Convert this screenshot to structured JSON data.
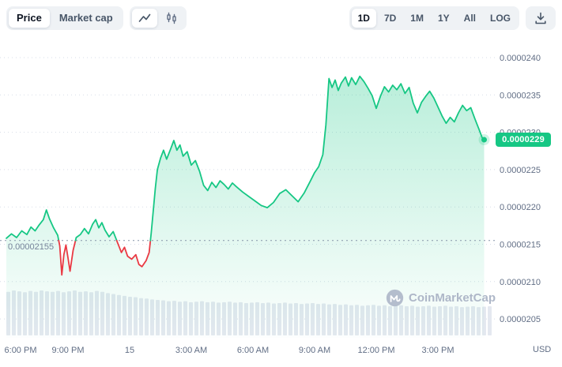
{
  "toolbar": {
    "metric_toggle": {
      "options": [
        "Price",
        "Market cap"
      ],
      "selected": "Price"
    },
    "chart_type": {
      "options": [
        "line",
        "candlestick"
      ],
      "selected": "line"
    },
    "ranges": {
      "options": [
        "1D",
        "7D",
        "1M",
        "1Y",
        "All",
        "LOG"
      ],
      "selected": "1D"
    }
  },
  "watermark": {
    "logo": "coinmarketcap-logo",
    "text": "CoinMarketCap"
  },
  "chart_data": {
    "type": "area",
    "title": "Cryptocurrency price chart, 1D range",
    "unit_note": "price values stored as value_x1e7; e.g. 229 means 0.0000229 USD",
    "x_axis": {
      "ticks": [
        {
          "label": "6:00 PM",
          "t": 0
        },
        {
          "label": "9:00 PM",
          "t": 3
        },
        {
          "label": "15",
          "t": 6
        },
        {
          "label": "3:00 AM",
          "t": 9
        },
        {
          "label": "6:00 AM",
          "t": 12
        },
        {
          "label": "9:00 AM",
          "t": 15
        },
        {
          "label": "12:00 PM",
          "t": 18
        },
        {
          "label": "3:00 PM",
          "t": 21
        }
      ]
    },
    "y_axis": {
      "ticks": [
        "0.0000240",
        "0.0000235",
        "0.0000230",
        "0.0000225",
        "0.0000220",
        "0.0000215",
        "0.0000210",
        "0.0000205"
      ],
      "unit": "USD"
    },
    "price": {
      "color_up": "#16c784",
      "color_down": "#ea3943",
      "prev_close_label": "0.00002155",
      "prev_close_x1e7": 215.5,
      "current_label": "0.0000229",
      "current_x1e7": 229.0,
      "points": [
        [
          0,
          215.8
        ],
        [
          0.25,
          216.4
        ],
        [
          0.5,
          215.9
        ],
        [
          0.75,
          216.8
        ],
        [
          1,
          216.3
        ],
        [
          1.2,
          217.3
        ],
        [
          1.4,
          216.8
        ],
        [
          1.6,
          217.6
        ],
        [
          1.8,
          218.3
        ],
        [
          1.95,
          219.6
        ],
        [
          2.1,
          218.4
        ],
        [
          2.3,
          217.2
        ],
        [
          2.5,
          216.2
        ],
        [
          2.6,
          214.8
        ],
        [
          2.7,
          210.9
        ],
        [
          2.8,
          213.6
        ],
        [
          2.9,
          214.9
        ],
        [
          3,
          213.2
        ],
        [
          3.1,
          211.4
        ],
        [
          3.25,
          214.2
        ],
        [
          3.4,
          215.9
        ],
        [
          3.6,
          216.3
        ],
        [
          3.8,
          217.1
        ],
        [
          4,
          216.4
        ],
        [
          4.2,
          217.7
        ],
        [
          4.35,
          218.3
        ],
        [
          4.5,
          217.2
        ],
        [
          4.65,
          217.9
        ],
        [
          4.8,
          216.9
        ],
        [
          5,
          216
        ],
        [
          5.2,
          216.7
        ],
        [
          5.4,
          215.3
        ],
        [
          5.6,
          213.9
        ],
        [
          5.75,
          214.6
        ],
        [
          5.9,
          213.4
        ],
        [
          6.1,
          213
        ],
        [
          6.3,
          213.6
        ],
        [
          6.45,
          212.3
        ],
        [
          6.6,
          212
        ],
        [
          6.8,
          212.8
        ],
        [
          6.95,
          213.9
        ],
        [
          7.05,
          216.5
        ],
        [
          7.15,
          219.5
        ],
        [
          7.25,
          222.5
        ],
        [
          7.35,
          225
        ],
        [
          7.5,
          226.5
        ],
        [
          7.65,
          227.6
        ],
        [
          7.8,
          226.4
        ],
        [
          8,
          227.8
        ],
        [
          8.15,
          228.9
        ],
        [
          8.3,
          227.6
        ],
        [
          8.45,
          228.3
        ],
        [
          8.6,
          226.8
        ],
        [
          8.8,
          227.4
        ],
        [
          9,
          225.6
        ],
        [
          9.2,
          226.2
        ],
        [
          9.4,
          224.8
        ],
        [
          9.6,
          222.9
        ],
        [
          9.8,
          222.2
        ],
        [
          10,
          223.3
        ],
        [
          10.2,
          222.6
        ],
        [
          10.4,
          223.5
        ],
        [
          10.6,
          223
        ],
        [
          10.8,
          222.4
        ],
        [
          11,
          223.2
        ],
        [
          11.2,
          222.7
        ],
        [
          11.5,
          222
        ],
        [
          11.8,
          221.4
        ],
        [
          12.1,
          220.8
        ],
        [
          12.4,
          220.2
        ],
        [
          12.7,
          219.9
        ],
        [
          13,
          220.6
        ],
        [
          13.3,
          221.8
        ],
        [
          13.6,
          222.3
        ],
        [
          13.9,
          221.5
        ],
        [
          14.2,
          220.7
        ],
        [
          14.5,
          221.9
        ],
        [
          14.8,
          223.5
        ],
        [
          15,
          224.6
        ],
        [
          15.2,
          225.4
        ],
        [
          15.4,
          227
        ],
        [
          15.55,
          231
        ],
        [
          15.7,
          237.2
        ],
        [
          15.85,
          236
        ],
        [
          16,
          237
        ],
        [
          16.15,
          235.6
        ],
        [
          16.3,
          236.6
        ],
        [
          16.5,
          237.4
        ],
        [
          16.65,
          236.2
        ],
        [
          16.8,
          237.3
        ],
        [
          17,
          236.4
        ],
        [
          17.2,
          237.5
        ],
        [
          17.4,
          236.8
        ],
        [
          17.6,
          235.9
        ],
        [
          17.8,
          234.9
        ],
        [
          18,
          233.2
        ],
        [
          18.2,
          234.8
        ],
        [
          18.4,
          236.1
        ],
        [
          18.6,
          235.4
        ],
        [
          18.8,
          236.3
        ],
        [
          19,
          235.7
        ],
        [
          19.2,
          236.5
        ],
        [
          19.4,
          235.2
        ],
        [
          19.6,
          236
        ],
        [
          19.8,
          233.9
        ],
        [
          20,
          232.6
        ],
        [
          20.2,
          234
        ],
        [
          20.4,
          234.8
        ],
        [
          20.6,
          235.5
        ],
        [
          20.8,
          234.6
        ],
        [
          21,
          233.4
        ],
        [
          21.2,
          232.2
        ],
        [
          21.4,
          231.2
        ],
        [
          21.6,
          232
        ],
        [
          21.8,
          231.4
        ],
        [
          22,
          232.6
        ],
        [
          22.2,
          233.6
        ],
        [
          22.4,
          232.9
        ],
        [
          22.6,
          233.3
        ],
        [
          22.8,
          231.8
        ],
        [
          23,
          230.4
        ],
        [
          23.15,
          229.3
        ],
        [
          23.25,
          229
        ]
      ]
    },
    "volume": {
      "color": "#e4e8f0",
      "values": [
        0.97,
        1.0,
        0.98,
        0.96,
        0.99,
        0.97,
        1.0,
        0.98,
        0.97,
        0.99,
        0.96,
        0.98,
        1.0,
        0.97,
        0.98,
        0.96,
        0.99,
        0.97,
        0.94,
        0.92,
        0.9,
        0.88,
        0.86,
        0.85,
        0.83,
        0.82,
        0.8,
        0.79,
        0.78,
        0.76,
        0.77,
        0.75,
        0.76,
        0.74,
        0.75,
        0.76,
        0.74,
        0.75,
        0.73,
        0.74,
        0.75,
        0.73,
        0.74,
        0.72,
        0.73,
        0.74,
        0.72,
        0.73,
        0.71,
        0.72,
        0.73,
        0.71,
        0.72,
        0.7,
        0.71,
        0.72,
        0.7,
        0.71,
        0.69,
        0.7,
        0.68,
        0.69,
        0.67,
        0.68,
        0.66,
        0.67,
        0.68,
        0.66,
        0.67,
        0.65,
        0.66,
        0.67,
        0.65,
        0.66,
        0.64,
        0.65,
        0.66,
        0.64,
        0.65,
        0.66,
        0.64,
        0.65,
        0.63,
        0.64,
        0.65,
        0.63,
        0.64,
        0.65
      ]
    }
  }
}
